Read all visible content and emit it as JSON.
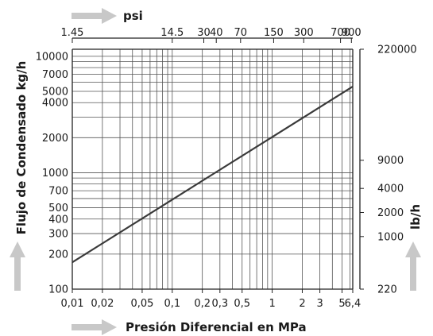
{
  "chart_data": {
    "type": "line",
    "title": "",
    "xlabel": "Presión Diferencial en MPa",
    "ylabel": "Flujo de Condensado kg/h",
    "top_axis_label": "psi",
    "right_axis_label": "lb/h",
    "x_scale": "log",
    "y_scale": "log",
    "xlim": [
      0.01,
      6.4
    ],
    "ylim": [
      100,
      11500
    ],
    "grid": true,
    "x_ticks": [
      {
        "v": 0.01,
        "t": "0,01"
      },
      {
        "v": 0.02,
        "t": "0,02"
      },
      {
        "v": 0.05,
        "t": "0,05"
      },
      {
        "v": 0.1,
        "t": "0,1"
      },
      {
        "v": 0.2,
        "t": "0,2"
      },
      {
        "v": 0.3,
        "t": "0,3"
      },
      {
        "v": 0.5,
        "t": "0,5"
      },
      {
        "v": 1,
        "t": "1"
      },
      {
        "v": 2,
        "t": "2"
      },
      {
        "v": 3,
        "t": "3"
      },
      {
        "v": 5,
        "t": "5"
      },
      {
        "v": 6.4,
        "t": "6,4"
      }
    ],
    "top_ticks": [
      {
        "v": 1.45,
        "t": "1.45"
      },
      {
        "v": 14.5,
        "t": "14.5"
      },
      {
        "v": 30,
        "t": "30"
      },
      {
        "v": 40,
        "t": "40"
      },
      {
        "v": 70,
        "t": "70"
      },
      {
        "v": 150,
        "t": "150"
      },
      {
        "v": 300,
        "t": "300"
      },
      {
        "v": 700,
        "t": "700"
      },
      {
        "v": 900,
        "t": "900"
      }
    ],
    "y_ticks": [
      {
        "v": 100,
        "t": "100"
      },
      {
        "v": 200,
        "t": "200"
      },
      {
        "v": 300,
        "t": "300"
      },
      {
        "v": 400,
        "t": "400"
      },
      {
        "v": 500,
        "t": "500"
      },
      {
        "v": 700,
        "t": "700"
      },
      {
        "v": 1000,
        "t": "1000"
      },
      {
        "v": 2000,
        "t": "2000"
      },
      {
        "v": 4000,
        "t": "4000"
      },
      {
        "v": 5000,
        "t": "5000"
      },
      {
        "v": 7000,
        "t": "7000"
      },
      {
        "v": 10000,
        "t": "10000"
      }
    ],
    "right_ticks": [
      {
        "v": 220,
        "t": "220"
      },
      {
        "v": 1000,
        "t": "1000"
      },
      {
        "v": 2000,
        "t": "2000"
      },
      {
        "v": 4000,
        "t": "4000"
      },
      {
        "v": 9000,
        "t": "9000"
      },
      {
        "v": 220000,
        "t": "220000"
      }
    ],
    "extra_x_grid": [
      0.03,
      0.04,
      0.06,
      0.07,
      0.08,
      0.09,
      0.4,
      0.6,
      0.7,
      0.8,
      0.9,
      4,
      6
    ],
    "extra_y_grid": [
      600,
      800,
      900,
      3000,
      6000,
      8000,
      9000
    ],
    "series": [
      {
        "x": [
          0.01,
          6.4
        ],
        "y": [
          170,
          5500
        ],
        "color": "#3a3a3a"
      }
    ],
    "arrow_color": "#c8c8c8"
  }
}
